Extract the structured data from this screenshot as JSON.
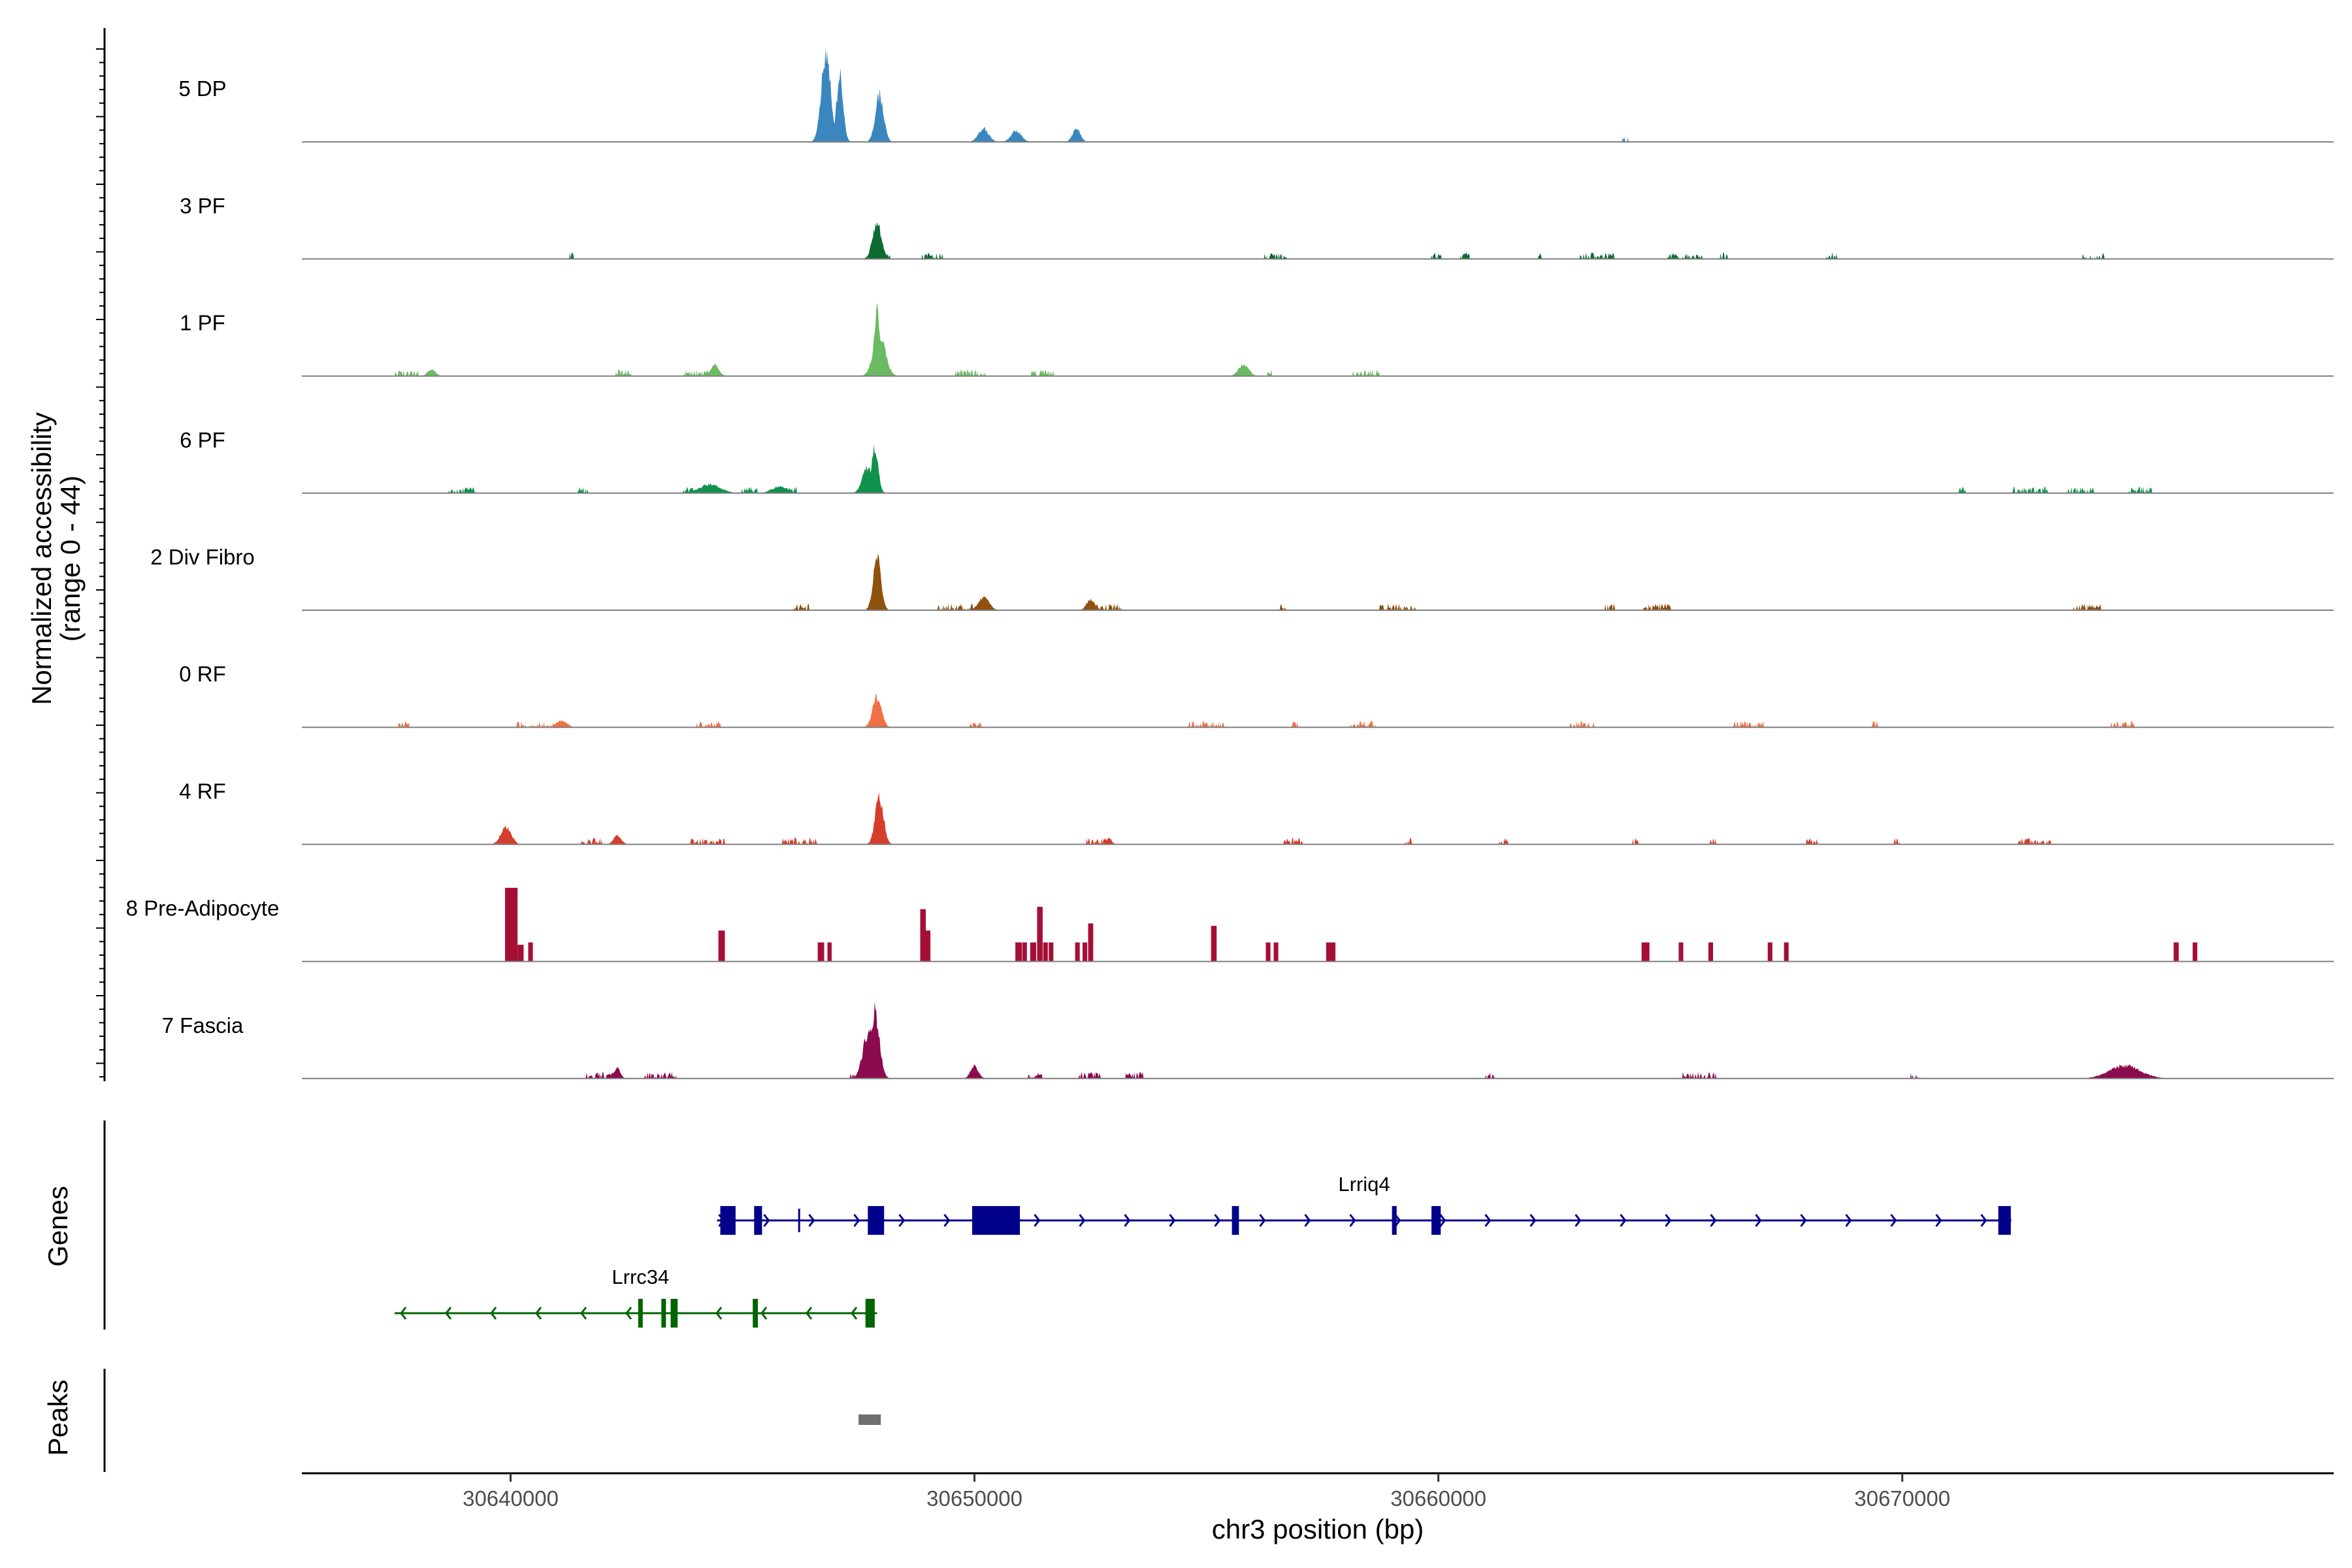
{
  "chart_data": {
    "type": "area",
    "title": "",
    "chromosome": "chr3",
    "xlabel": "chr3 position (bp)",
    "ylabel": "Normalized accessibility",
    "ylabel_range": "(range 0 - 44)",
    "y_range": [
      0,
      44
    ],
    "xlim": [
      30635500,
      30679300
    ],
    "x_ticks": [
      30640000,
      30650000,
      30660000,
      30670000
    ],
    "x_tick_labels": [
      "30640000",
      "30650000",
      "30660000",
      "30670000"
    ],
    "panel_labels": {
      "genes": "Genes",
      "peaks": "Peaks"
    },
    "series": [
      {
        "name": "5 DP",
        "color": "#3a87c0",
        "density": 0.28,
        "peaks": [
          [
            30646800,
            40,
            180
          ],
          [
            30647100,
            30,
            130
          ],
          [
            30647950,
            22,
            160
          ],
          [
            30650200,
            6,
            200
          ],
          [
            30650900,
            5,
            200
          ],
          [
            30652200,
            6,
            150
          ]
        ]
      },
      {
        "name": "3 PF",
        "color": "#0b6b31",
        "density": 0.55,
        "peaks": [
          [
            30647900,
            17,
            170
          ]
        ]
      },
      {
        "name": "1 PF",
        "color": "#6abb62",
        "density": 0.55,
        "peaks": [
          [
            30647900,
            31,
            110
          ],
          [
            30647950,
            18,
            230
          ],
          [
            30644400,
            5,
            160
          ],
          [
            30655800,
            5,
            200
          ],
          [
            30638300,
            3,
            150
          ]
        ]
      },
      {
        "name": "6 PF",
        "color": "#11924c",
        "density": 0.5,
        "peaks": [
          [
            30647850,
            21,
            130
          ],
          [
            30647700,
            12,
            200
          ],
          [
            30644300,
            4,
            400
          ],
          [
            30645800,
            3,
            300
          ]
        ]
      },
      {
        "name": "2 Div Fibro",
        "color": "#8e510e",
        "density": 0.55,
        "peaks": [
          [
            30647900,
            24,
            150
          ],
          [
            30650200,
            6,
            200
          ],
          [
            30652500,
            5,
            150
          ]
        ]
      },
      {
        "name": "0 RF",
        "color": "#f07045",
        "density": 0.45,
        "peaks": [
          [
            30647900,
            14,
            170
          ],
          [
            30641100,
            3,
            200
          ]
        ]
      },
      {
        "name": "4 RF",
        "color": "#d53e2b",
        "density": 0.5,
        "peaks": [
          [
            30647950,
            22,
            160
          ],
          [
            30639900,
            8,
            200
          ],
          [
            30642300,
            4,
            150
          ],
          [
            30652900,
            3,
            100
          ]
        ]
      },
      {
        "name": "8 Pre-Adipocyte",
        "color": "#a50f35",
        "blocks": [
          [
            30639880,
            30640150,
            31
          ],
          [
            30640150,
            30640280,
            7
          ],
          [
            30640380,
            30640480,
            8
          ],
          [
            30644480,
            30644620,
            13
          ],
          [
            30646620,
            30646760,
            8
          ],
          [
            30646830,
            30646920,
            8
          ],
          [
            30648830,
            30648950,
            22
          ],
          [
            30648950,
            30649050,
            13
          ],
          [
            30650880,
            30651020,
            8
          ],
          [
            30651030,
            30651130,
            8
          ],
          [
            30651200,
            30651330,
            8
          ],
          [
            30651350,
            30651470,
            23
          ],
          [
            30651480,
            30651580,
            8
          ],
          [
            30651600,
            30651700,
            8
          ],
          [
            30652170,
            30652270,
            8
          ],
          [
            30652330,
            30652430,
            8
          ],
          [
            30652450,
            30652560,
            16
          ],
          [
            30655100,
            30655220,
            15
          ],
          [
            30656280,
            30656380,
            8
          ],
          [
            30656450,
            30656550,
            8
          ],
          [
            30657580,
            30657780,
            8
          ],
          [
            30664380,
            30664550,
            8
          ],
          [
            30665180,
            30665280,
            8
          ],
          [
            30665820,
            30665920,
            8
          ],
          [
            30667100,
            30667200,
            8
          ],
          [
            30667450,
            30667550,
            8
          ],
          [
            30675850,
            30675960,
            8
          ],
          [
            30676260,
            30676360,
            8
          ]
        ]
      },
      {
        "name": "7 Fascia",
        "color": "#8c0a4e",
        "density": 0.75,
        "peaks": [
          [
            30647850,
            31,
            180
          ],
          [
            30647700,
            20,
            200
          ],
          [
            30642300,
            5,
            120
          ],
          [
            30650000,
            6,
            150
          ],
          [
            30674800,
            6,
            600
          ]
        ]
      }
    ],
    "genes": [
      {
        "name": "Lrriq4",
        "strand": "+",
        "color": "#00008b",
        "start": 30644450,
        "end": 30672350,
        "exons": [
          [
            30644520,
            30644850
          ],
          [
            30645250,
            30645420
          ],
          [
            30647700,
            30648050
          ],
          [
            30649950,
            30650980
          ],
          [
            30655550,
            30655700
          ],
          [
            30659000,
            30659100
          ],
          [
            30659850,
            30660050
          ],
          [
            30672070,
            30672340
          ]
        ],
        "thin_ticks": [
          30646220
        ],
        "label_x": 30658400,
        "row": 1
      },
      {
        "name": "Lrrc34",
        "strand": "-",
        "color": "#006400",
        "start": 30637500,
        "end": 30647900,
        "exons": [
          [
            30642750,
            30642800
          ],
          [
            30643250,
            30643300
          ],
          [
            30643450,
            30643600
          ],
          [
            30645220,
            30645330
          ],
          [
            30647650,
            30647850
          ]
        ],
        "thin_ticks": [],
        "label_x": 30642800,
        "row": 2
      }
    ],
    "peak_regions": [
      [
        30647500,
        30647980
      ]
    ]
  }
}
